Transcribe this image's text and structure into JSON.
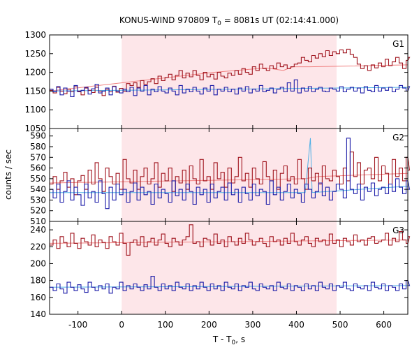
{
  "chart_data": {
    "type": "line",
    "title_main": "KONUS-WIND 970809 T",
    "title_sub": "0",
    "title_rest": " = 8081s UT (02:14:41.000)",
    "xlabel_main": "T - T",
    "xlabel_sub": "0",
    "xlabel_rest": ", s",
    "ylabel": "counts / sec",
    "xlim": [
      -165,
      655
    ],
    "x_ticks": [
      -100,
      0,
      100,
      200,
      300,
      400,
      500,
      600
    ],
    "x_tick_labels": [
      "-100",
      "0",
      "100",
      "200",
      "300",
      "400",
      "500",
      "600"
    ],
    "shaded_interval": [
      0,
      492
    ],
    "bin_width": 8,
    "colors": {
      "shade": "#fde6e9",
      "red": "#a0141e",
      "blue": "#1c1ca8",
      "red_bg": "#f08080",
      "blue_bg": "#4fb0e6"
    },
    "panels": [
      {
        "label": "G1",
        "ylim": [
          1050,
          1300
        ],
        "y_ticks": [
          1050,
          1100,
          1150,
          1200,
          1250,
          1300
        ],
        "y_tick_labels": [
          "1050",
          "1100",
          "1150",
          "1200",
          "1250",
          "1300"
        ],
        "series": [
          {
            "color_key": "red",
            "values": [
              1152,
              1145,
              1160,
              1150,
              1143,
              1155,
              1148,
              1162,
              1150,
              1140,
              1158,
              1152,
              1146,
              1160,
              1150,
              1138,
              1155,
              1148,
              1163,
              1147,
              1157,
              1150,
              1170,
              1165,
              1172,
              1160,
              1178,
              1168,
              1175,
              1183,
              1170,
              1190,
              1178,
              1186,
              1195,
              1180,
              1192,
              1205,
              1185,
              1198,
              1188,
              1205,
              1192,
              1180,
              1200,
              1188,
              1195,
              1182,
              1200,
              1190,
              1185,
              1198,
              1192,
              1205,
              1195,
              1210,
              1200,
              1195,
              1215,
              1205,
              1222,
              1210,
              1205,
              1218,
              1210,
              1225,
              1215,
              1220,
              1210,
              1215,
              1222,
              1225,
              1240,
              1232,
              1228,
              1245,
              1238,
              1250,
              1242,
              1258,
              1245,
              1255,
              1250,
              1260,
              1252,
              1262,
              1248,
              1240,
              1222,
              1210,
              1218,
              1205,
              1220,
              1212,
              1225,
              1215,
              1235,
              1218,
              1228,
              1240,
              1225,
              1210,
              1232,
              1240
            ]
          },
          {
            "color_key": "blue",
            "values": [
              1155,
              1148,
              1162,
              1140,
              1158,
              1150,
              1135,
              1165,
              1148,
              1152,
              1160,
              1142,
              1156,
              1168,
              1145,
              1150,
              1158,
              1140,
              1162,
              1150,
              1145,
              1155,
              1148,
              1160,
              1138,
              1158,
              1150,
              1165,
              1140,
              1155,
              1148,
              1162,
              1150,
              1145,
              1158,
              1150,
              1140,
              1165,
              1145,
              1155,
              1148,
              1160,
              1150,
              1142,
              1158,
              1150,
              1165,
              1140,
              1155,
              1150,
              1160,
              1148,
              1155,
              1142,
              1158,
              1150,
              1162,
              1145,
              1155,
              1150,
              1165,
              1148,
              1152,
              1158,
              1145,
              1155,
              1160,
              1148,
              1172,
              1150,
              1180,
              1145,
              1158,
              1150,
              1162,
              1148,
              1155,
              1160,
              1150,
              1148,
              1158,
              1155,
              1150,
              1162,
              1148,
              1155,
              1160,
              1150,
              1158,
              1145,
              1162,
              1152,
              1148,
              1165,
              1150,
              1158,
              1152,
              1160,
              1148,
              1155,
              1165,
              1158,
              1150,
              1162
            ]
          }
        ],
        "background_segments": [
          {
            "color_key": "red_bg",
            "points": [
              [
                -165,
                1150
              ],
              [
                210,
                1200
              ],
              [
                330,
                1212
              ],
              [
                370,
                1205
              ],
              [
                392,
                1215
              ],
              [
                430,
                1215
              ],
              [
                655,
                1220
              ]
            ]
          },
          {
            "color_key": "blue_bg",
            "points": [
              [
                -165,
                1150
              ],
              [
                655,
                1160
              ]
            ]
          }
        ]
      },
      {
        "label": "G2",
        "ylim": [
          510,
          597
        ],
        "y_ticks": [
          510,
          520,
          530,
          540,
          550,
          560,
          570,
          580,
          590
        ],
        "y_tick_labels": [
          "510",
          "520",
          "530",
          "540",
          "550",
          "560",
          "570",
          "580",
          "590"
        ],
        "series": [
          {
            "color_key": "red",
            "values": [
              545,
              552,
              540,
              548,
              556,
              542,
              550,
              535,
              548,
              553,
              540,
              558,
              545,
              565,
              550,
              538,
              560,
              552,
              545,
              555,
              540,
              568,
              550,
              546,
              558,
              540,
              552,
              560,
              545,
              550,
              565,
              542,
              555,
              548,
              560,
              538,
              552,
              546,
              558,
              540,
              562,
              550,
              545,
              568,
              548,
              552,
              540,
              565,
              550,
              556,
              542,
              560,
              546,
              552,
              570,
              548,
              555,
              542,
              560,
              550,
              545,
              566,
              552,
              548,
              558,
              540,
              555,
              562,
              548,
              552,
              545,
              568,
              550,
              540,
              560,
              548,
              555,
              545,
              562,
              550,
              548,
              558,
              552,
              545,
              560,
              548,
              575,
              552,
              565,
              545,
              558,
              560,
              550,
              570,
              548,
              562,
              555,
              545,
              568,
              552,
              560,
              548,
              570,
              558
            ]
          },
          {
            "color_key": "blue",
            "values": [
              540,
              532,
              545,
              528,
              538,
              548,
              530,
              542,
              535,
              525,
              545,
              532,
              538,
              528,
              548,
              536,
              522,
              542,
              530,
              545,
              535,
              540,
              528,
              538,
              546,
              530,
              542,
              535,
              538,
              526,
              545,
              532,
              540,
              536,
              528,
              548,
              534,
              540,
              530,
              545,
              538,
              526,
              542,
              535,
              540,
              528,
              545,
              532,
              538,
              542,
              530,
              546,
              535,
              540,
              528,
              542,
              536,
              530,
              545,
              534,
              540,
              538,
              526,
              548,
              535,
              542,
              530,
              538,
              545,
              532,
              540,
              536,
              528,
              545,
              540,
              532,
              538,
              546,
              534,
              542,
              530,
              538,
              545,
              540,
              532,
              588,
              540,
              536,
              545,
              530,
              542,
              538,
              546,
              534,
              540,
              542,
              536,
              545,
              538,
              550,
              542,
              536,
              548,
              540
            ]
          }
        ],
        "background_segments": [
          {
            "color_key": "red_bg",
            "points": [
              [
                -165,
                546
              ],
              [
                420,
                550
              ],
              [
                450,
                552
              ],
              [
                655,
                555
              ]
            ]
          },
          {
            "color_key": "blue_bg",
            "points": [
              [
                -165,
                537
              ],
              [
                420,
                537
              ],
              [
                432,
                588
              ],
              [
                436,
                537
              ],
              [
                655,
                543
              ]
            ]
          }
        ]
      },
      {
        "label": "G3",
        "ylim": [
          140,
          250
        ],
        "y_ticks": [
          140,
          160,
          180,
          200,
          220,
          240
        ],
        "y_tick_labels": [
          "140",
          "160",
          "180",
          "200",
          "220",
          "240"
        ],
        "series": [
          {
            "color_key": "red",
            "values": [
              222,
              228,
              218,
              232,
              225,
              220,
              236,
              224,
              218,
              230,
              226,
              222,
              234,
              220,
              228,
              225,
              218,
              232,
              226,
              222,
              236,
              224,
              210,
              225,
              228,
              222,
              232,
              220,
              226,
              230,
              222,
              228,
              235,
              224,
              220,
              230,
              226,
              222,
              228,
              232,
              246,
              224,
              226,
              220,
              230,
              228,
              222,
              235,
              224,
              228,
              220,
              232,
              226,
              222,
              230,
              224,
              236,
              228,
              222,
              226,
              230,
              224,
              220,
              232,
              226,
              228,
              222,
              230,
              224,
              236,
              226,
              222,
              228,
              232,
              224,
              220,
              230,
              226,
              228,
              222,
              235,
              224,
              228,
              220,
              230,
              226,
              222,
              234,
              226,
              228,
              222,
              230,
              232,
              224,
              226,
              228,
              236,
              222,
              230,
              226,
              238,
              228,
              224,
              232
            ]
          },
          {
            "color_key": "blue",
            "values": [
              172,
              168,
              176,
              170,
              165,
              178,
              172,
              168,
              175,
              170,
              166,
              178,
              172,
              168,
              174,
              170,
              176,
              165,
              172,
              170,
              178,
              168,
              174,
              170,
              176,
              172,
              168,
              175,
              170,
              185,
              172,
              168,
              176,
              170,
              174,
              168,
              178,
              172,
              170,
              176,
              168,
              174,
              170,
              178,
              172,
              168,
              176,
              170,
              174,
              168,
              178,
              172,
              170,
              176,
              168,
              174,
              172,
              178,
              170,
              168,
              176,
              172,
              170,
              174,
              168,
              178,
              172,
              170,
              176,
              168,
              174,
              172,
              168,
              176,
              170,
              174,
              168,
              178,
              172,
              170,
              176,
              168,
              174,
              172,
              178,
              170,
              168,
              176,
              172,
              170,
              174,
              168,
              178,
              172,
              170,
              176,
              168,
              174,
              172,
              168,
              176,
              170,
              180,
              174
            ]
          }
        ],
        "background_segments": [
          {
            "color_key": "red_bg",
            "points": [
              [
                -165,
                224
              ],
              [
                655,
                228
              ]
            ]
          },
          {
            "color_key": "blue_bg",
            "points": [
              [
                -165,
                172
              ],
              [
                655,
                174
              ]
            ]
          }
        ]
      }
    ]
  }
}
